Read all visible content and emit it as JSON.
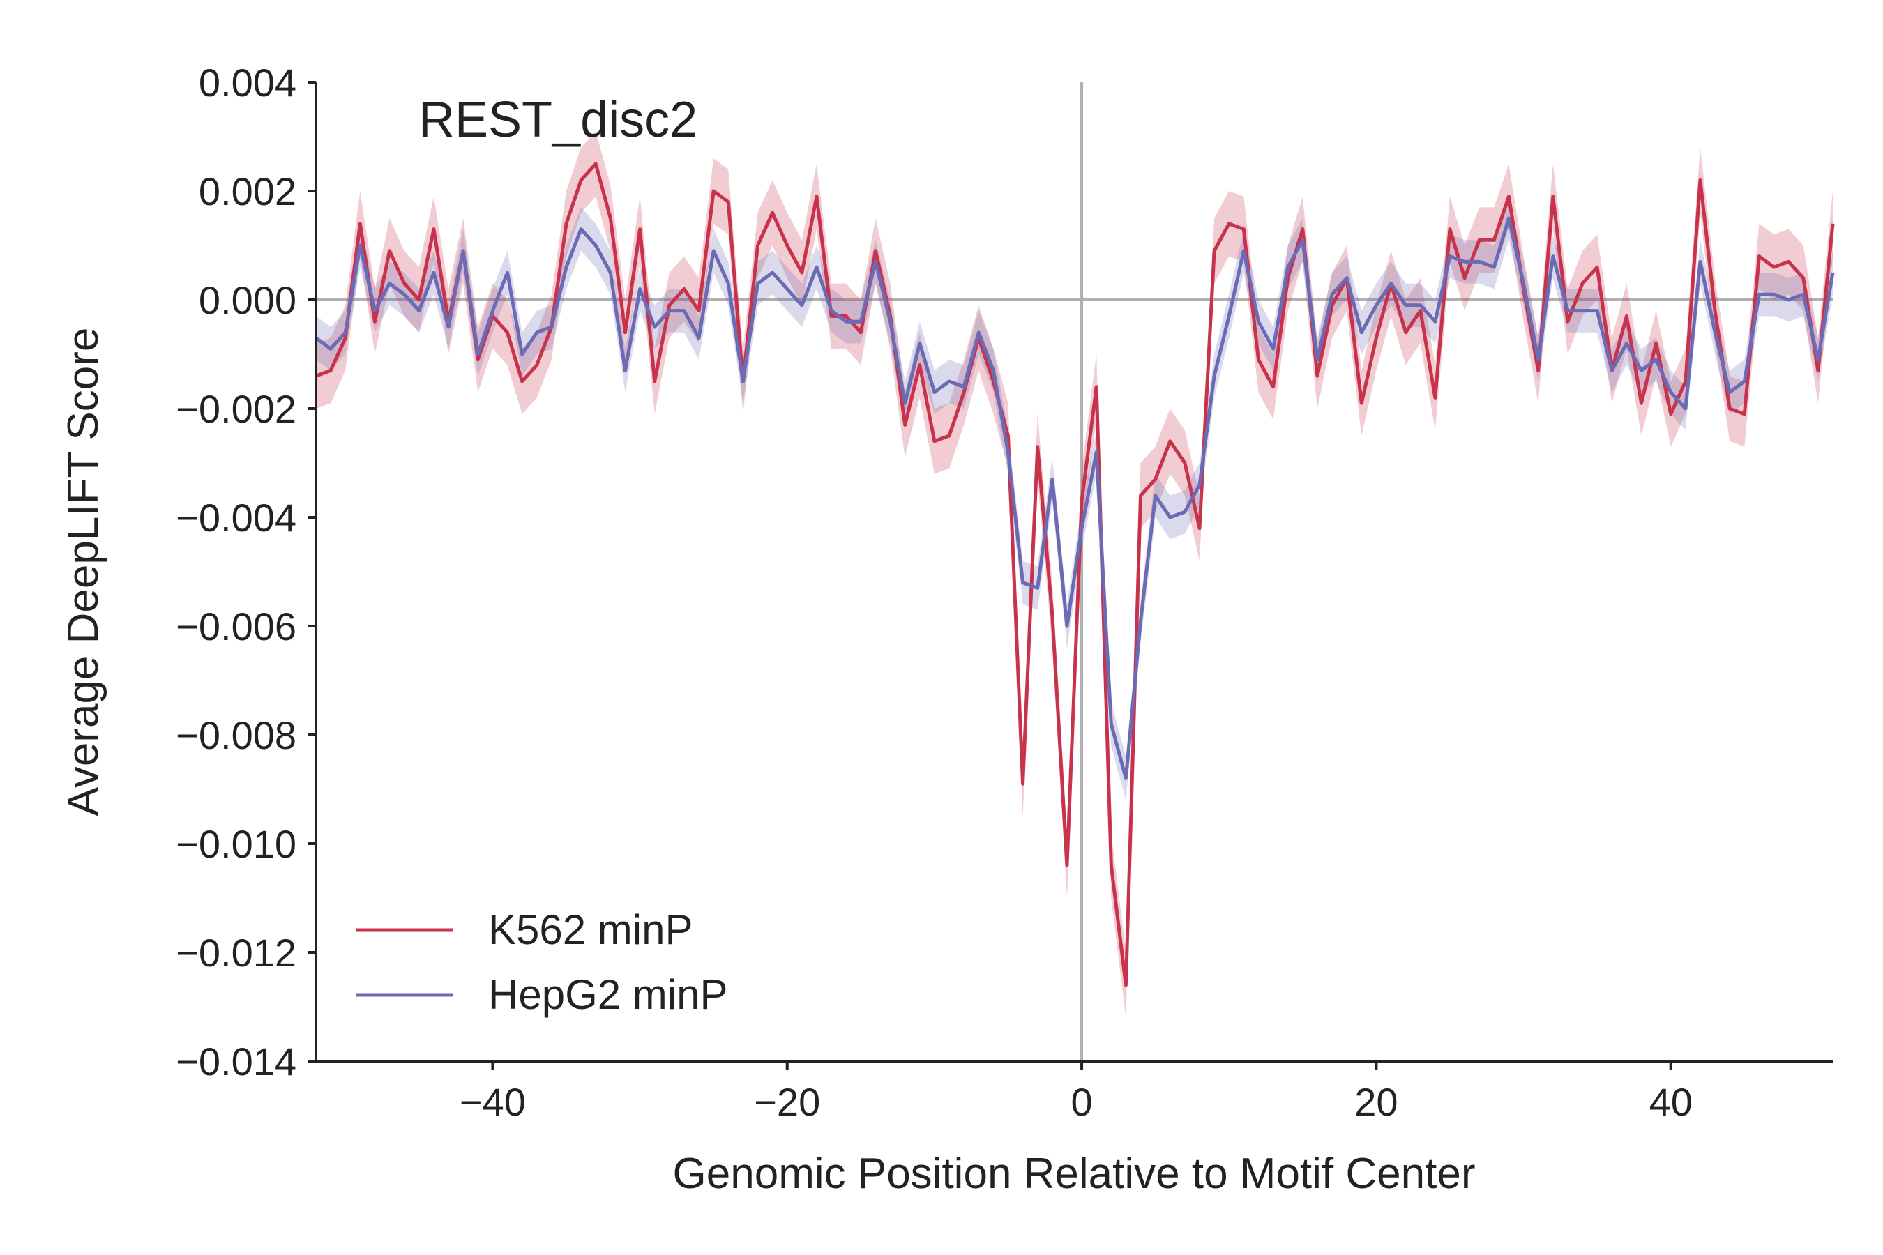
{
  "chart_data": {
    "type": "line",
    "title": "REST_disc2",
    "xlabel": "Genomic Position Relative to Motif Center",
    "ylabel": "Average DeepLIFT Score",
    "xlim": [
      -52,
      51
    ],
    "ylim": [
      -0.014,
      0.004
    ],
    "xticks": [
      -40,
      -20,
      0,
      20,
      40
    ],
    "xtick_labels": [
      "−40",
      "−20",
      "0",
      "20",
      "40"
    ],
    "yticks": [
      0.004,
      0.002,
      0.0,
      -0.002,
      -0.004,
      -0.006,
      -0.008,
      -0.01,
      -0.012,
      -0.014
    ],
    "ytick_labels": [
      "0.004",
      "0.002",
      "0.000",
      "−0.002",
      "−0.004",
      "−0.006",
      "−0.008",
      "−0.010",
      "−0.012",
      "−0.014"
    ],
    "reference_lines": {
      "x": 0,
      "y": 0,
      "color": "#b0b0b0"
    },
    "grid": false,
    "legend": {
      "position": "lower-left"
    },
    "x": [
      -52,
      -51,
      -50,
      -49,
      -48,
      -47,
      -46,
      -45,
      -44,
      -43,
      -42,
      -41,
      -40,
      -39,
      -38,
      -37,
      -36,
      -35,
      -34,
      -33,
      -32,
      -31,
      -30,
      -29,
      -28,
      -27,
      -26,
      -25,
      -24,
      -23,
      -22,
      -21,
      -20,
      -19,
      -18,
      -17,
      -16,
      -15,
      -14,
      -13,
      -12,
      -11,
      -10,
      -9,
      -8,
      -7,
      -6,
      -5,
      -4,
      -3,
      -2,
      -1,
      0,
      1,
      2,
      3,
      4,
      5,
      6,
      7,
      8,
      9,
      10,
      11,
      12,
      13,
      14,
      15,
      16,
      17,
      18,
      19,
      20,
      21,
      22,
      23,
      24,
      25,
      26,
      27,
      28,
      29,
      30,
      31,
      32,
      33,
      34,
      35,
      36,
      37,
      38,
      39,
      40,
      41,
      42,
      43,
      44,
      45,
      46,
      47,
      48,
      49,
      50,
      51
    ],
    "series": [
      {
        "name": "K562 minP",
        "color": "#c8324a",
        "band": 0.0006,
        "values": [
          -0.0014,
          -0.0013,
          -0.0007,
          0.0014,
          -0.0004,
          0.0009,
          0.0003,
          0.0,
          0.0013,
          -0.0004,
          0.0009,
          -0.0011,
          -0.0003,
          -0.0006,
          -0.0015,
          -0.0012,
          -0.0005,
          0.0014,
          0.0022,
          0.0025,
          0.0015,
          -0.0006,
          0.0013,
          -0.0015,
          -0.0001,
          0.0002,
          -0.0002,
          0.002,
          0.0018,
          -0.0015,
          0.001,
          0.0016,
          0.001,
          0.0005,
          0.0019,
          -0.0003,
          -0.0003,
          -0.0006,
          0.0009,
          -0.0003,
          -0.0023,
          -0.0012,
          -0.0026,
          -0.0025,
          -0.0017,
          -0.0007,
          -0.0015,
          -0.0025,
          -0.0089,
          -0.0027,
          -0.0058,
          -0.0104,
          -0.0037,
          -0.0016,
          -0.0104,
          -0.0126,
          -0.0036,
          -0.0033,
          -0.0026,
          -0.003,
          -0.0042,
          0.0009,
          0.0014,
          0.0013,
          -0.0011,
          -0.0016,
          0.0004,
          0.0013,
          -0.0014,
          -0.0001,
          0.0004,
          -0.0019,
          -0.0007,
          0.0003,
          -0.0006,
          -0.0002,
          -0.0018,
          0.0013,
          0.0004,
          0.0011,
          0.0011,
          0.0019,
          0.0002,
          -0.0013,
          0.0019,
          -0.0004,
          0.0003,
          0.0006,
          -0.0013,
          -0.0003,
          -0.0019,
          -0.0008,
          -0.0021,
          -0.0015,
          0.0022,
          -0.0002,
          -0.002,
          -0.0021,
          0.0008,
          0.0006,
          0.0007,
          0.0004,
          -0.0013,
          0.0014
        ]
      },
      {
        "name": "HepG2 minP",
        "color": "#6b6ab4",
        "band": 0.0004,
        "values": [
          -0.0007,
          -0.0009,
          -0.0006,
          0.001,
          -0.0002,
          0.0003,
          0.0001,
          -0.0002,
          0.0005,
          -0.0005,
          0.0009,
          -0.001,
          -0.0002,
          0.0005,
          -0.001,
          -0.0006,
          -0.0005,
          0.0006,
          0.0013,
          0.001,
          0.0005,
          -0.0013,
          0.0002,
          -0.0005,
          -0.0002,
          -0.0002,
          -0.0007,
          0.0009,
          0.0003,
          -0.0015,
          0.0003,
          0.0005,
          0.0002,
          -0.0001,
          0.0006,
          -0.0002,
          -0.0004,
          -0.0004,
          0.0007,
          -0.0004,
          -0.0019,
          -0.0008,
          -0.0017,
          -0.0015,
          -0.0016,
          -0.0006,
          -0.0013,
          -0.0028,
          -0.0052,
          -0.0053,
          -0.0033,
          -0.006,
          -0.0042,
          -0.0028,
          -0.0078,
          -0.0088,
          -0.0059,
          -0.0036,
          -0.004,
          -0.0039,
          -0.0034,
          -0.0014,
          -0.0003,
          0.0009,
          -0.0004,
          -0.0009,
          0.0006,
          0.0011,
          -0.0011,
          0.0001,
          0.0004,
          -0.0006,
          -0.0001,
          0.0003,
          -0.0001,
          -0.0001,
          -0.0004,
          0.0008,
          0.0007,
          0.0007,
          0.0006,
          0.0015,
          0.0003,
          -0.0011,
          0.0008,
          -0.0002,
          -0.0002,
          -0.0002,
          -0.0013,
          -0.0008,
          -0.0013,
          -0.0011,
          -0.0017,
          -0.002,
          0.0007,
          -0.0006,
          -0.0017,
          -0.0015,
          0.0001,
          0.0001,
          0.0,
          0.0001,
          -0.0011,
          0.0005
        ]
      }
    ]
  }
}
